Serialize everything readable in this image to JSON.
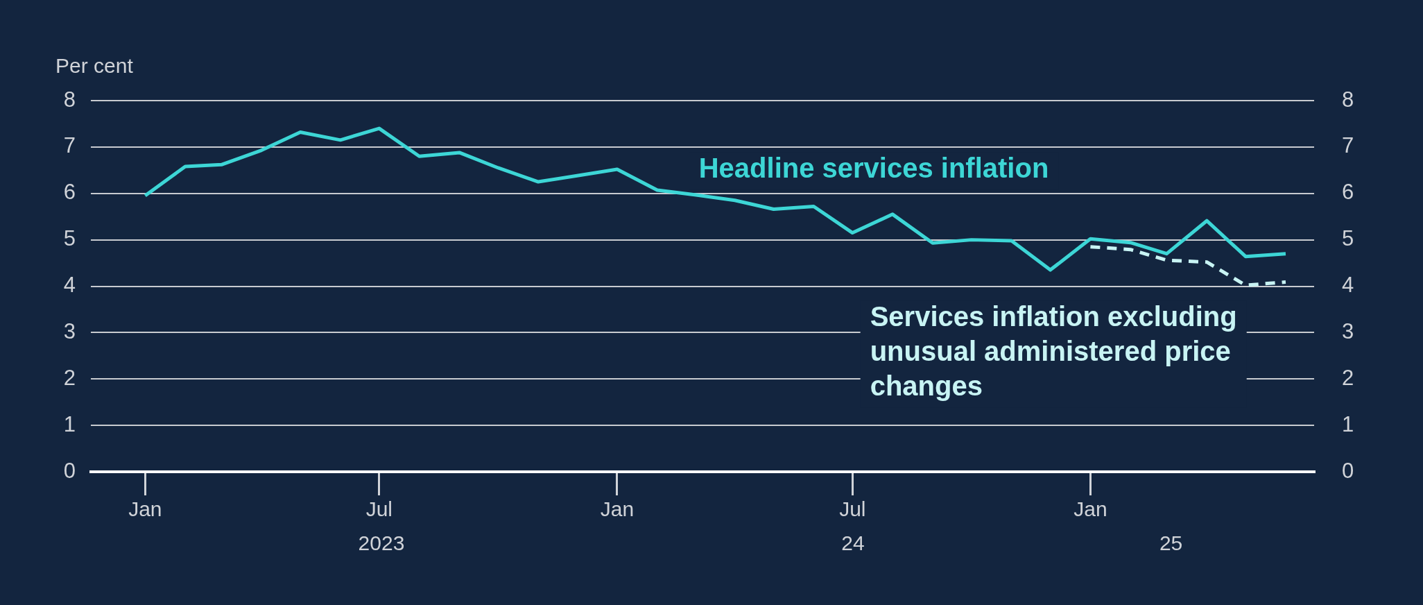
{
  "chart_data": {
    "type": "line",
    "ylabel": "Per cent",
    "series": [
      {
        "name": "Headline services inflation",
        "color": "#3dd6d6",
        "line_style": "solid",
        "x": [
          "2023-01",
          "2023-02",
          "2023-03",
          "2023-04",
          "2023-05",
          "2023-06",
          "2023-07",
          "2023-08",
          "2023-09",
          "2023-10",
          "2023-11",
          "2023-12",
          "2024-01",
          "2024-02",
          "2024-03",
          "2024-04",
          "2024-05",
          "2024-06",
          "2024-07",
          "2024-08",
          "2024-09",
          "2024-10",
          "2024-11",
          "2024-12",
          "2025-01",
          "2025-02",
          "2025-03",
          "2025-04",
          "2025-05",
          "2025-06"
        ],
        "values": [
          5.95,
          6.58,
          6.62,
          6.93,
          7.32,
          7.15,
          7.4,
          6.8,
          6.88,
          6.55,
          6.25,
          6.38,
          6.52,
          6.07,
          5.97,
          5.85,
          5.66,
          5.72,
          5.15,
          5.55,
          4.93,
          5.0,
          4.98,
          4.35,
          5.02,
          4.94,
          4.7,
          5.41,
          4.64,
          4.7
        ]
      },
      {
        "name": "Services inflation excluding unusual administered price changes",
        "color": "#c8f4f4",
        "line_style": "dashed",
        "x": [
          "2025-01",
          "2025-02",
          "2025-03",
          "2025-04",
          "2025-05",
          "2025-06"
        ],
        "values": [
          4.85,
          4.79,
          4.56,
          4.52,
          4.02,
          4.09
        ]
      }
    ],
    "xlim": [
      "2022-11-20",
      "2025-06-23"
    ],
    "xticks": [
      {
        "value": "2023-01",
        "label": "Jan"
      },
      {
        "value": "2023-07",
        "label": "Jul"
      },
      {
        "value": "2024-01",
        "label": "Jan"
      },
      {
        "value": "2024-07",
        "label": "Jul"
      },
      {
        "value": "2025-01",
        "label": "Jan"
      }
    ],
    "ylim": [
      0,
      8
    ],
    "yticks": [
      0,
      1,
      2,
      3,
      4,
      5,
      6,
      7,
      8
    ],
    "y2lim": [
      0,
      8
    ],
    "y2ticks": [
      0,
      1,
      2,
      3,
      4,
      5,
      6,
      7,
      8
    ],
    "annotations": [
      "2023",
      "24",
      "25"
    ],
    "grid": "y",
    "legend": false,
    "marker": "none"
  }
}
